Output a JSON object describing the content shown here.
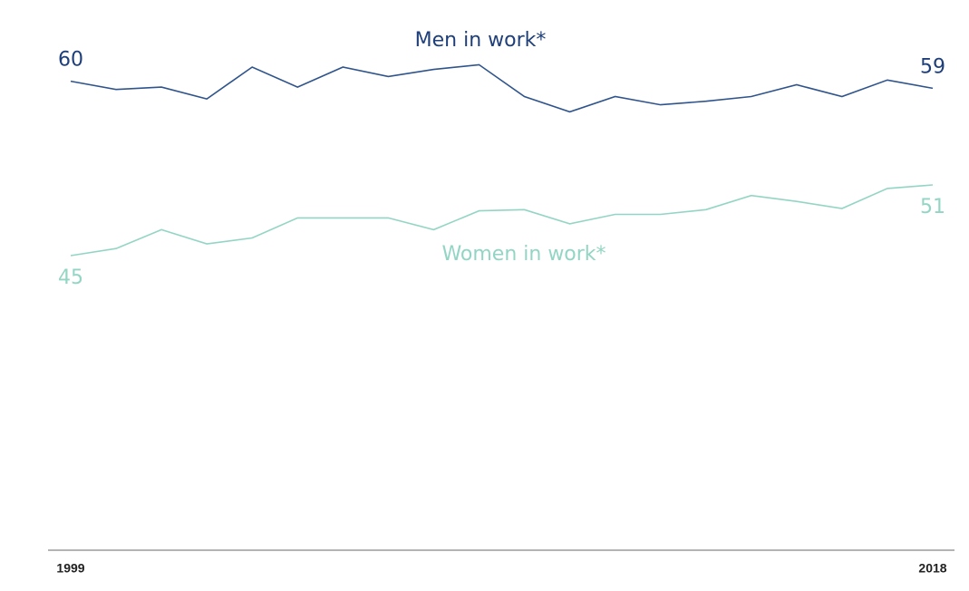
{
  "chart_data": {
    "type": "line",
    "categories": [
      "1999",
      null,
      null,
      null,
      null,
      null,
      null,
      null,
      null,
      null,
      null,
      null,
      null,
      null,
      null,
      null,
      null,
      null,
      null,
      "2018"
    ],
    "ylim": [
      20,
      64
    ],
    "series": [
      {
        "name": "Men in work*",
        "color": "#2f548c",
        "values": [
          59.8,
          59.1,
          59.3,
          58.3,
          61.0,
          59.3,
          61.0,
          60.2,
          60.8,
          61.2,
          58.5,
          57.2,
          58.5,
          57.8,
          58.1,
          58.5,
          59.5,
          58.5,
          59.9,
          59.2
        ],
        "value_labels": [
          "60",
          null,
          null,
          null,
          null,
          null,
          null,
          null,
          null,
          null,
          null,
          null,
          null,
          null,
          null,
          null,
          null,
          null,
          null,
          "59"
        ]
      },
      {
        "name": "Women in work*",
        "color": "#93d5c4",
        "values": [
          45.0,
          45.6,
          47.2,
          46.0,
          46.5,
          48.2,
          48.2,
          48.2,
          47.2,
          48.8,
          48.9,
          47.7,
          48.5,
          48.5,
          48.9,
          50.1,
          49.6,
          49.0,
          50.7,
          51.0
        ],
        "value_labels": [
          "45",
          null,
          null,
          null,
          null,
          null,
          null,
          null,
          null,
          null,
          null,
          null,
          null,
          null,
          null,
          null,
          null,
          null,
          null,
          "51"
        ]
      }
    ]
  }
}
